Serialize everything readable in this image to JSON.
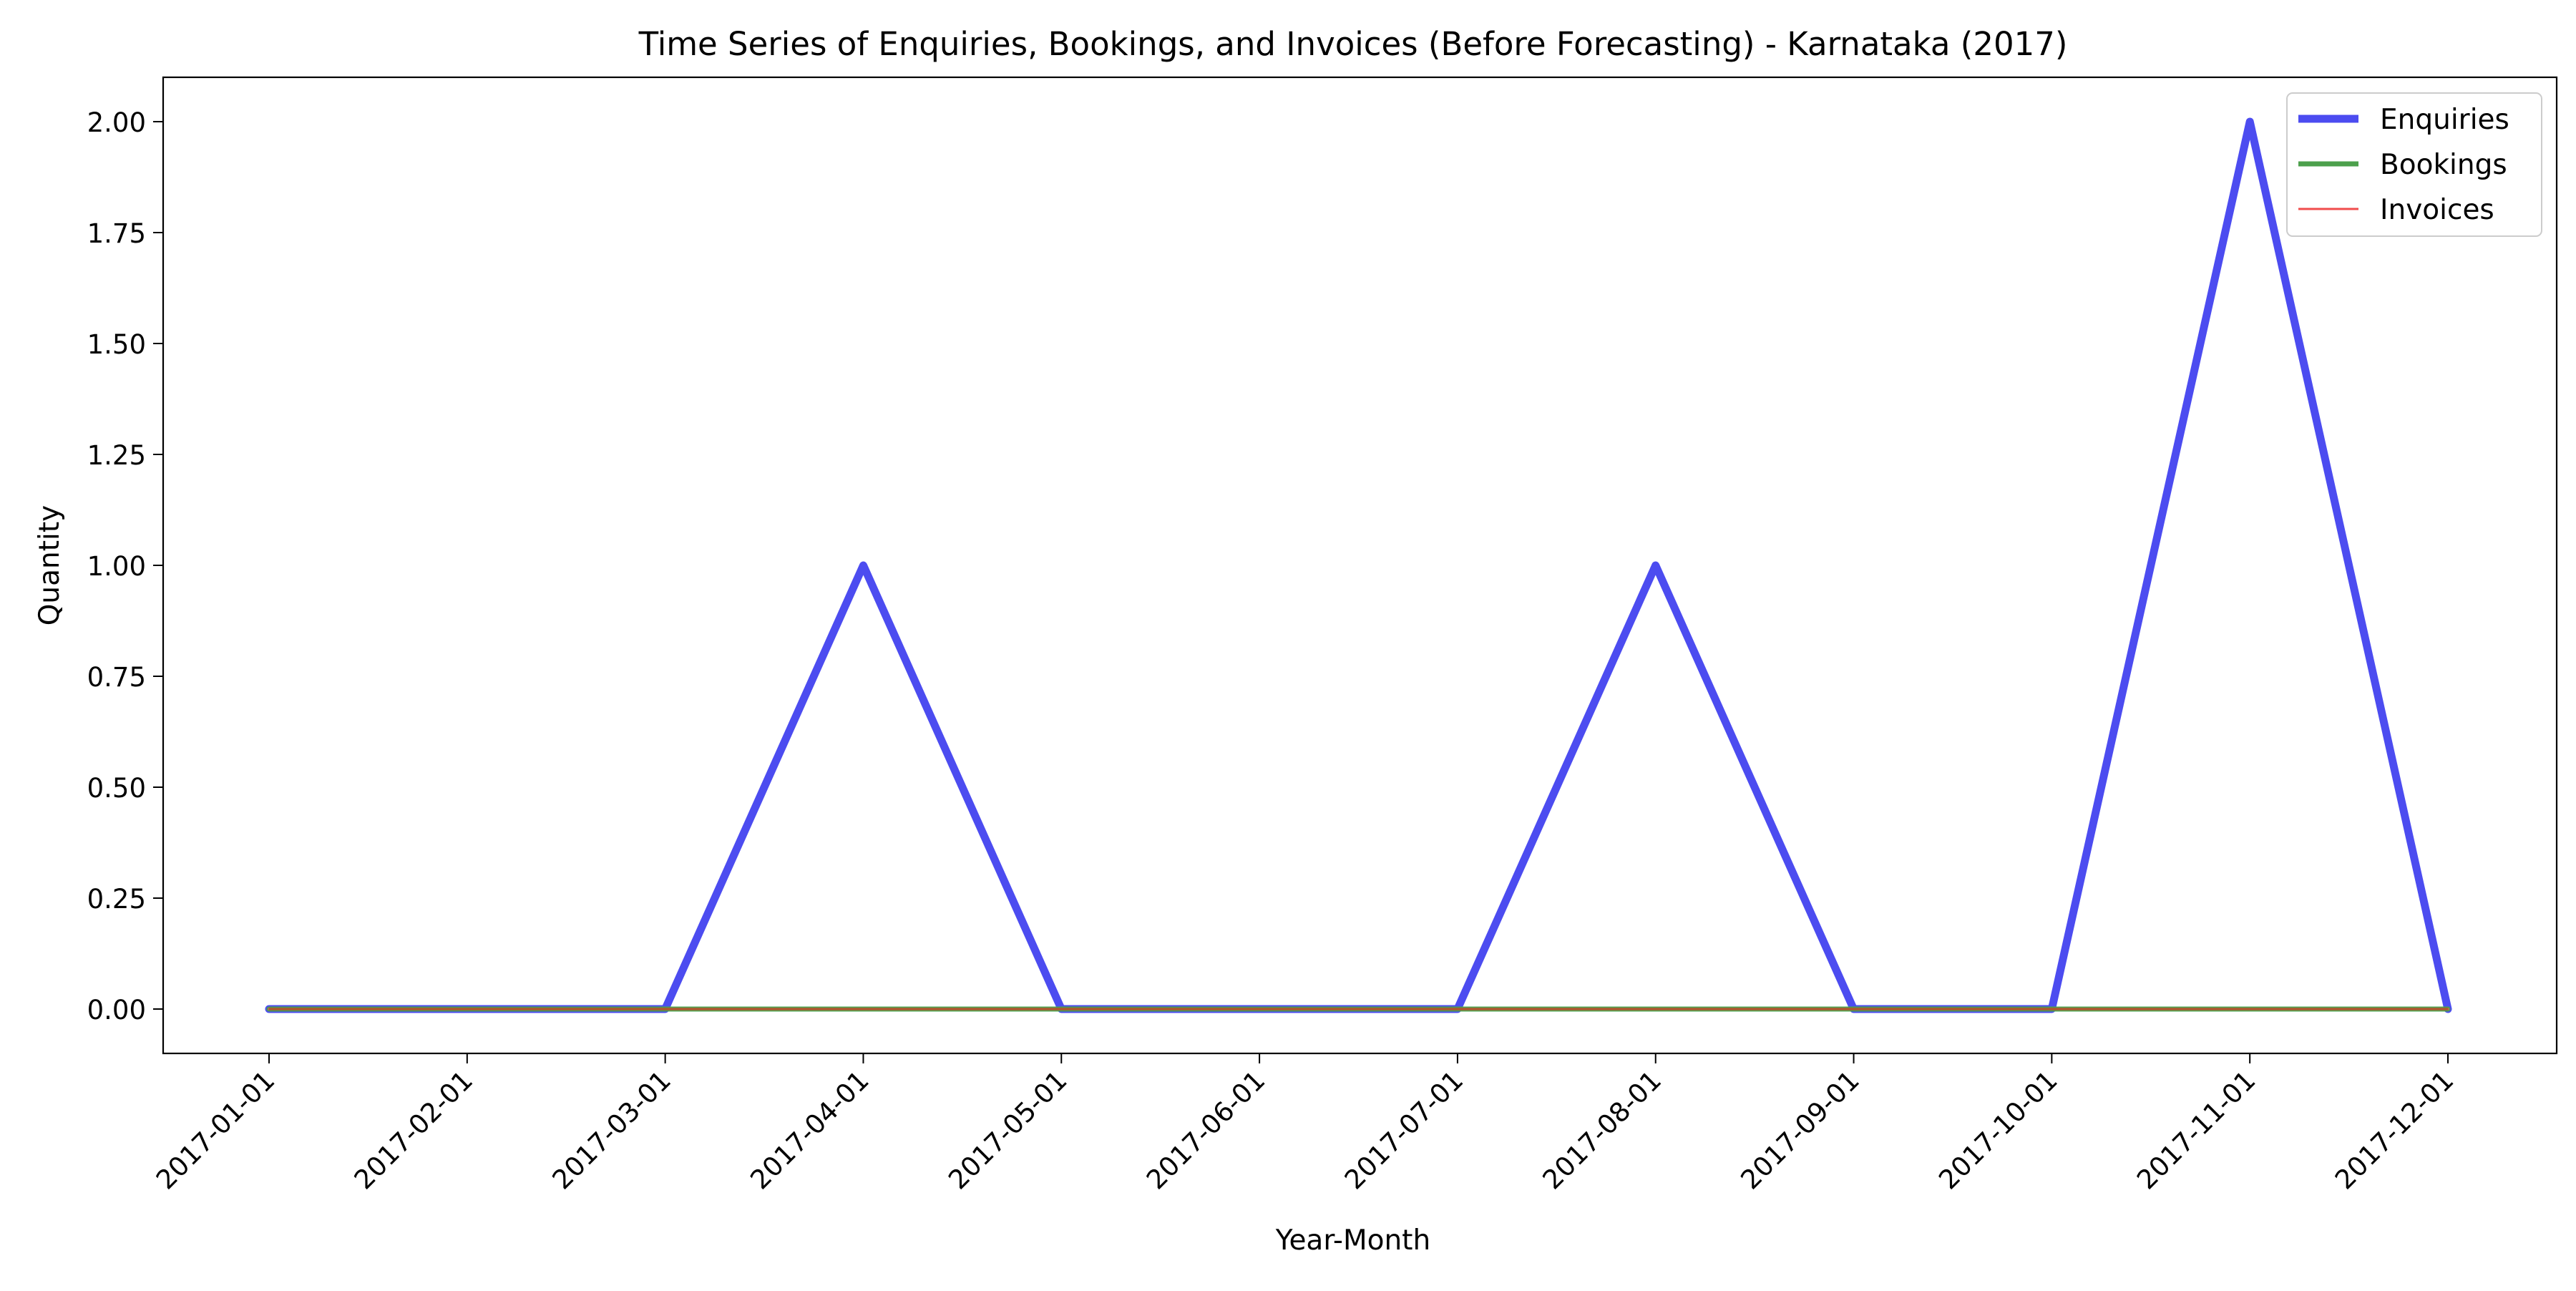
{
  "chart_data": {
    "type": "line",
    "title": "Time Series of Enquiries, Bookings, and Invoices (Before Forecasting) - Karnataka (2017)",
    "xlabel": "Year-Month",
    "ylabel": "Quantity",
    "x": [
      "2017-01-01",
      "2017-02-01",
      "2017-03-01",
      "2017-04-01",
      "2017-05-01",
      "2017-06-01",
      "2017-07-01",
      "2017-08-01",
      "2017-09-01",
      "2017-10-01",
      "2017-11-01",
      "2017-12-01"
    ],
    "ylim": [
      -0.1,
      2.1
    ],
    "yticks": [
      "0.00",
      "0.25",
      "0.50",
      "0.75",
      "1.00",
      "1.25",
      "1.50",
      "1.75",
      "2.00"
    ],
    "grid": false,
    "legend_position": "top-right",
    "series": [
      {
        "name": "Enquiries",
        "color": "#4c4cf0",
        "values": [
          0,
          0,
          0,
          1,
          0,
          0,
          0,
          1,
          0,
          0,
          2,
          0
        ]
      },
      {
        "name": "Bookings",
        "color": "#4ca04c",
        "values": [
          0,
          0,
          0,
          0,
          0,
          0,
          0,
          0,
          0,
          0,
          0,
          0
        ]
      },
      {
        "name": "Invoices",
        "color": "#f04c4c",
        "values": [
          0,
          0,
          0,
          0,
          0,
          0,
          0,
          0,
          0,
          0,
          0,
          0
        ]
      }
    ]
  }
}
